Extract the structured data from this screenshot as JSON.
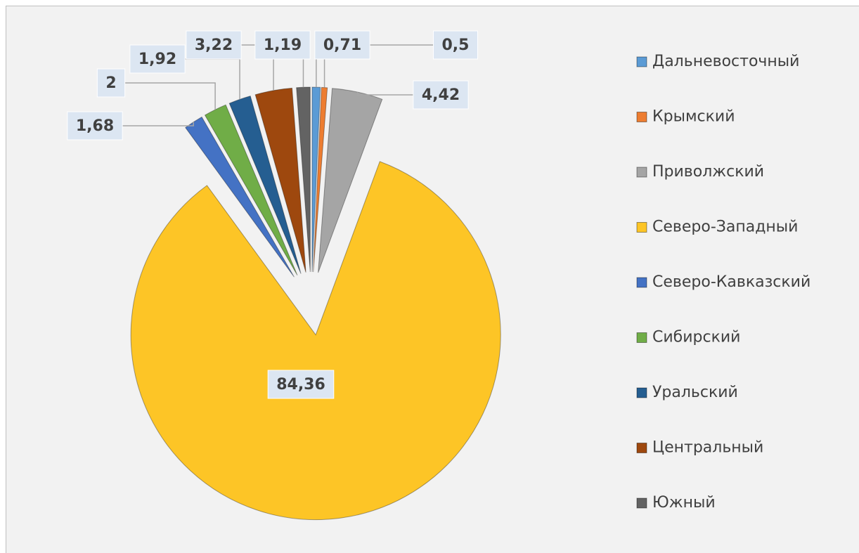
{
  "chart_data": {
    "type": "pie",
    "categories": [
      "Дальневосточный",
      "Крымский",
      "Приволжский",
      "Северо-Западный",
      "Северо-Кавказский",
      "Сибирский",
      "Уральский",
      "Центральный",
      "Южный"
    ],
    "values": [
      0.71,
      0.5,
      4.42,
      84.36,
      1.68,
      2,
      1.92,
      3.22,
      1.19
    ],
    "value_labels": [
      "0,71",
      "0,5",
      "4,42",
      "84,36",
      "1,68",
      "2",
      "1,92",
      "3,22",
      "1,19"
    ],
    "colors": [
      "#5b9bd5",
      "#ed7d31",
      "#a5a5a5",
      "#fdc526",
      "#4472c4",
      "#70ad47",
      "#255e91",
      "#9e480e",
      "#636363"
    ],
    "legend": "right"
  }
}
